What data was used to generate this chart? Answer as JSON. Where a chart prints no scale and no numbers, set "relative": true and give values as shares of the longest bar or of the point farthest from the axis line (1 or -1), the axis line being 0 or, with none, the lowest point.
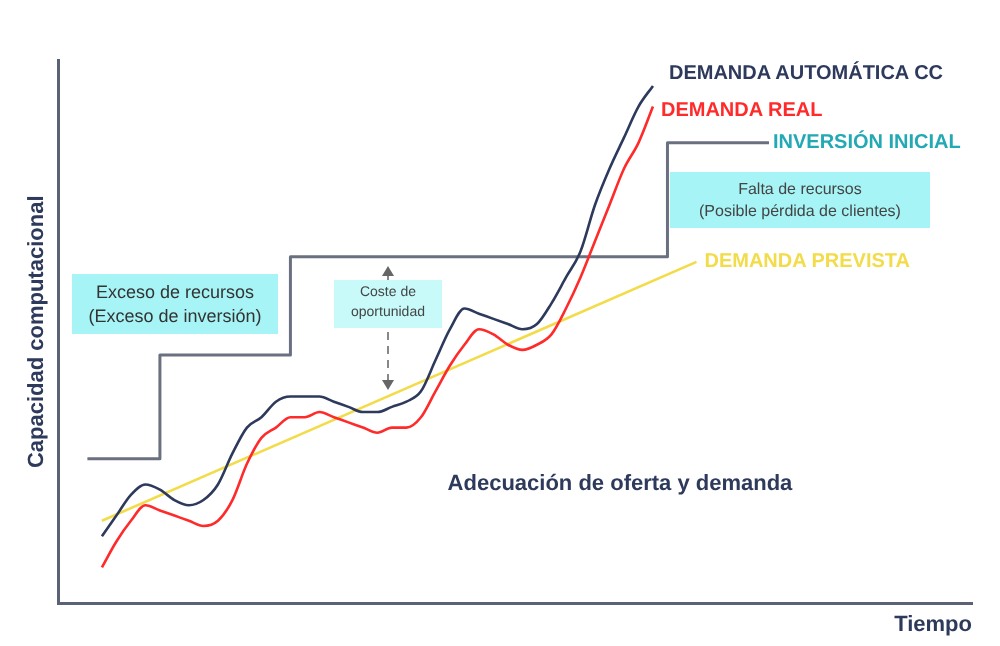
{
  "chart_data": {
    "type": "line",
    "relative": true,
    "ylabel": "Capacidad computacional",
    "xlabel": "Tiempo",
    "categories": [
      null,
      null,
      null,
      null,
      null,
      null,
      null,
      null,
      null,
      null,
      null,
      null,
      null,
      null,
      null,
      null,
      null,
      null,
      null,
      null,
      null,
      null,
      null,
      null,
      null,
      null,
      null,
      null,
      null,
      null,
      null,
      null,
      null,
      null,
      null,
      null,
      null,
      null,
      null,
      null,
      null,
      null,
      null,
      null,
      null,
      null,
      null,
      null,
      null,
      null,
      null,
      null,
      null,
      null,
      null,
      null,
      null,
      null,
      null,
      null,
      null,
      null,
      null,
      null
    ],
    "series": [
      {
        "name": "DEMANDA AUTOMÁTICA CC",
        "color": "#2e3a5c",
        "values": [
          null,
          null,
          null,
          0.13,
          0.17,
          0.21,
          0.23,
          0.22,
          0.2,
          0.19,
          0.2,
          0.23,
          0.29,
          0.34,
          0.36,
          0.39,
          0.4,
          0.4,
          0.4,
          0.39,
          0.38,
          0.37,
          0.37,
          0.38,
          0.39,
          0.41,
          0.47,
          0.53,
          0.57,
          0.56,
          0.55,
          0.54,
          0.53,
          0.54,
          0.58,
          0.63,
          0.68,
          0.77,
          0.84,
          0.9,
          0.96,
          1,
          null,
          null,
          null,
          null,
          null,
          null,
          null,
          null,
          null,
          null,
          null,
          null,
          null,
          null,
          null,
          null,
          null,
          null,
          null,
          null,
          null,
          null
        ]
      },
      {
        "name": "DEMANDA REAL",
        "color": "#ff2a2a",
        "values": [
          null,
          null,
          null,
          0.07,
          0.12,
          0.16,
          0.19,
          0.18,
          0.17,
          0.16,
          0.15,
          0.16,
          0.2,
          0.27,
          0.32,
          0.34,
          0.36,
          0.36,
          0.37,
          0.36,
          0.35,
          0.34,
          0.33,
          0.34,
          0.34,
          0.36,
          0.41,
          0.46,
          0.5,
          0.53,
          0.52,
          0.5,
          0.49,
          0.5,
          0.52,
          0.57,
          0.63,
          0.7,
          0.77,
          0.84,
          0.89,
          0.96,
          null,
          null,
          null,
          null,
          null,
          null,
          null,
          null,
          null,
          null,
          null,
          null,
          null,
          null,
          null,
          null,
          null,
          null,
          null,
          null,
          null,
          null
        ]
      },
      {
        "name": "INVERSIÓN INICIAL",
        "type": "step",
        "color": "#6b7080",
        "values": [
          null,
          null,
          0.28,
          0.28,
          0.28,
          0.28,
          0.28,
          0.48,
          0.48,
          0.48,
          0.48,
          0.48,
          0.48,
          0.48,
          0.48,
          0.48,
          0.67,
          0.67,
          0.67,
          0.67,
          0.67,
          0.67,
          0.67,
          0.67,
          0.67,
          0.67,
          0.67,
          0.67,
          0.67,
          0.67,
          0.67,
          0.67,
          0.67,
          0.67,
          0.67,
          0.67,
          0.67,
          0.67,
          0.67,
          0.67,
          0.67,
          0.67,
          0.89,
          0.89,
          0.89,
          0.89,
          0.89,
          0.89,
          0.89,
          0.89,
          null,
          null,
          null,
          null,
          null,
          null,
          null,
          null,
          null,
          null,
          null,
          null,
          null,
          null
        ]
      },
      {
        "name": "DEMANDA PREVISTA",
        "color": "#f2dc4a",
        "values": [
          null,
          null,
          null,
          0.16,
          null,
          null,
          null,
          null,
          null,
          null,
          null,
          null,
          null,
          null,
          null,
          null,
          null,
          null,
          null,
          null,
          null,
          null,
          null,
          null,
          null,
          null,
          null,
          null,
          null,
          null,
          null,
          null,
          null,
          null,
          null,
          null,
          null,
          null,
          null,
          null,
          null,
          null,
          null,
          null,
          0.66,
          null,
          null,
          null,
          null,
          null,
          null,
          null,
          null,
          null,
          null,
          null,
          null,
          null,
          null,
          null,
          null,
          null,
          null,
          null
        ]
      }
    ],
    "annotations": [
      "Exceso de recursos\n(Exceso de inversión)",
      "Coste de\noportunidad",
      "Falta de recursos\n(Posible pérdida de clientes)",
      "Adecuación de oferta y demanda"
    ],
    "legend": false,
    "grid": false
  }
}
